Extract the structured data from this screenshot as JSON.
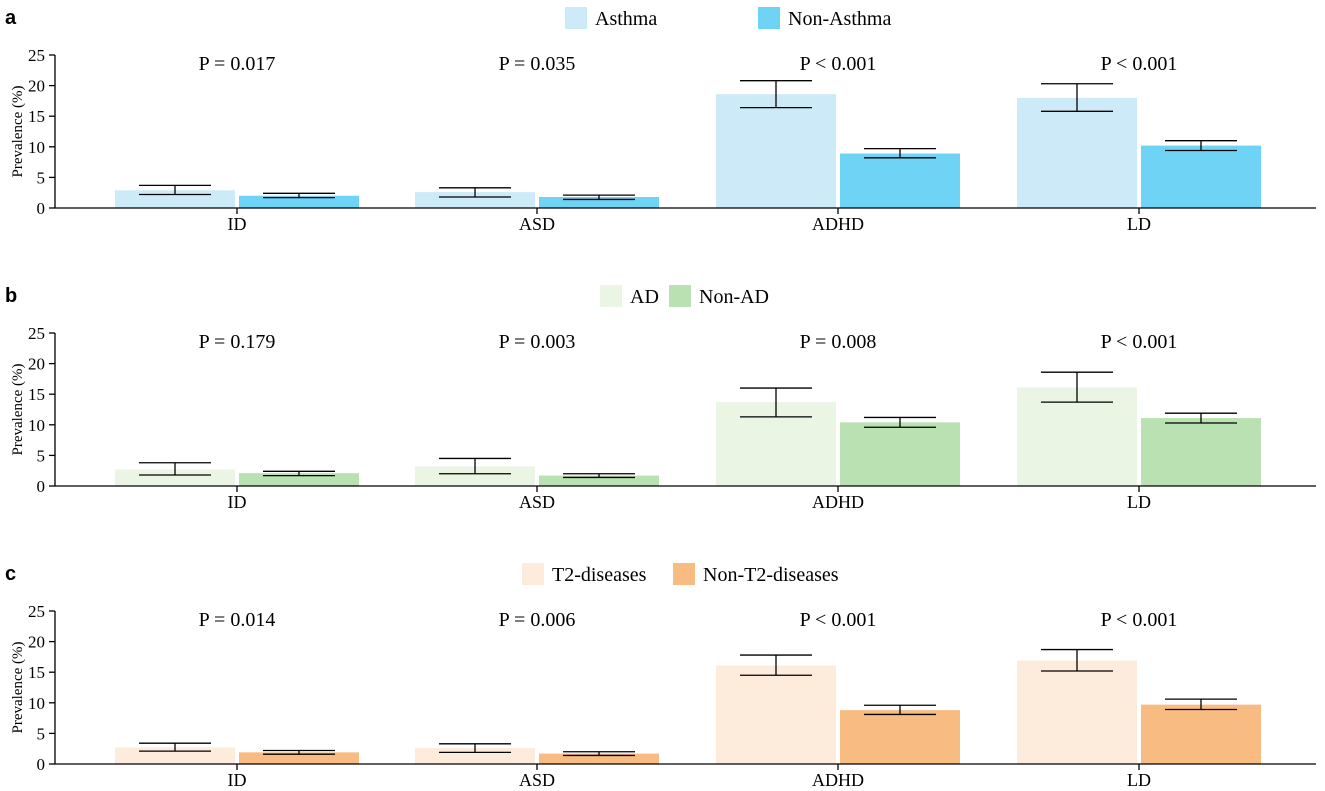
{
  "chart_data": [
    {
      "type": "bar",
      "panel": "a",
      "categories": [
        "ID",
        "ASD",
        "ADHD",
        "LD"
      ],
      "ylabel": "Prevalence (%)",
      "xlabel": "",
      "ylim": [
        0,
        25
      ],
      "yticks": [
        0,
        5,
        10,
        15,
        20,
        25
      ],
      "legend_position": "top-center",
      "p_values": [
        "P = 0.017",
        "P = 0.035",
        "P < 0.001",
        "P < 0.001"
      ],
      "series": [
        {
          "name": "Asthma",
          "color": "#cdeaf9",
          "values": [
            2.9,
            2.6,
            18.6,
            18.0
          ],
          "ci_low": [
            2.2,
            1.8,
            16.4,
            15.8
          ],
          "ci_high": [
            3.7,
            3.3,
            20.8,
            20.3
          ]
        },
        {
          "name": "Non-Asthma",
          "color": "#6fd3f5",
          "values": [
            2.0,
            1.8,
            8.9,
            10.2
          ],
          "ci_low": [
            1.7,
            1.4,
            8.2,
            9.4
          ],
          "ci_high": [
            2.4,
            2.1,
            9.7,
            11.0
          ]
        }
      ]
    },
    {
      "type": "bar",
      "panel": "b",
      "categories": [
        "ID",
        "ASD",
        "ADHD",
        "LD"
      ],
      "ylabel": "Prevalence (%)",
      "xlabel": "",
      "ylim": [
        0,
        25
      ],
      "yticks": [
        0,
        5,
        10,
        15,
        20,
        25
      ],
      "legend_position": "top-center",
      "p_values": [
        "P = 0.179",
        "P = 0.003",
        "P = 0.008",
        "P < 0.001"
      ],
      "series": [
        {
          "name": "AD",
          "color": "#eaf5e4",
          "values": [
            2.7,
            3.2,
            13.7,
            16.1
          ],
          "ci_low": [
            1.8,
            2.0,
            11.3,
            13.7
          ],
          "ci_high": [
            3.8,
            4.5,
            16.0,
            18.6
          ]
        },
        {
          "name": "Non-AD",
          "color": "#b9e1b1",
          "values": [
            2.1,
            1.7,
            10.4,
            11.1
          ],
          "ci_low": [
            1.7,
            1.4,
            9.6,
            10.3
          ],
          "ci_high": [
            2.4,
            2.0,
            11.2,
            11.9
          ]
        }
      ]
    },
    {
      "type": "bar",
      "panel": "c",
      "categories": [
        "ID",
        "ASD",
        "ADHD",
        "LD"
      ],
      "ylabel": "Prevalence (%)",
      "xlabel": "",
      "ylim": [
        0,
        25
      ],
      "yticks": [
        0,
        5,
        10,
        15,
        20,
        25
      ],
      "legend_position": "top-center",
      "p_values": [
        "P = 0.014",
        "P = 0.006",
        "P < 0.001",
        "P < 0.001"
      ],
      "series": [
        {
          "name": "T2-diseases",
          "color": "#fdebdc",
          "values": [
            2.7,
            2.6,
            16.1,
            16.9
          ],
          "ci_low": [
            2.1,
            1.9,
            14.5,
            15.2
          ],
          "ci_high": [
            3.4,
            3.3,
            17.8,
            18.7
          ]
        },
        {
          "name": "Non-T2-diseases",
          "color": "#f8bb82",
          "values": [
            1.9,
            1.7,
            8.8,
            9.7
          ],
          "ci_low": [
            1.6,
            1.4,
            8.1,
            8.9
          ],
          "ci_high": [
            2.2,
            2.0,
            9.6,
            10.6
          ]
        }
      ]
    }
  ]
}
